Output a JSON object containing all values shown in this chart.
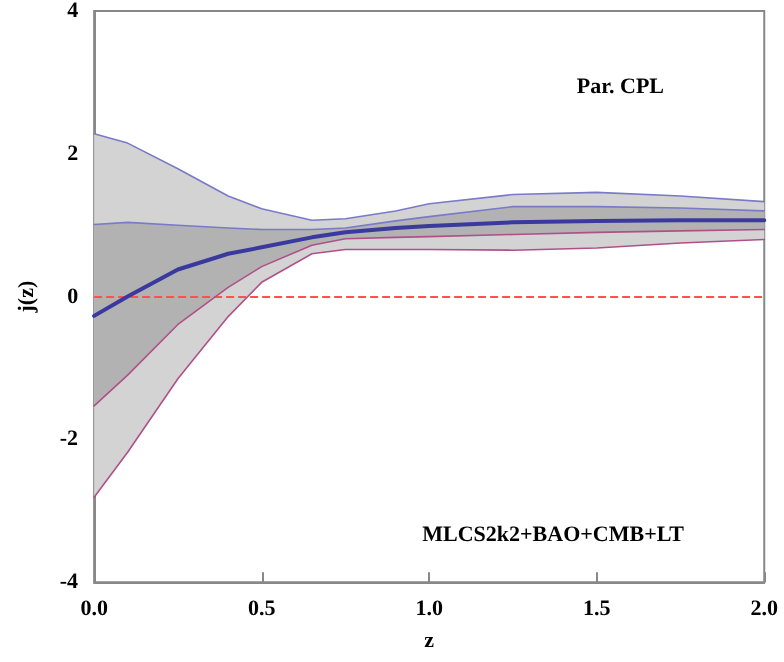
{
  "chart_data": {
    "type": "line",
    "xlabel": "z",
    "ylabel": "j(z)",
    "annotations": [
      "Par. CPL",
      "MLCS2k2+BAO+CMB+LT"
    ],
    "x": [
      0,
      0.1,
      0.25,
      0.4,
      0.5,
      0.65,
      0.75,
      0.9,
      1.0,
      1.25,
      1.5,
      1.75,
      2.0
    ],
    "series": [
      {
        "color": "#d3d3d3",
        "values": [
          null,
          null,
          null,
          null,
          null,
          null,
          null,
          null,
          null,
          null,
          null,
          null,
          null
        ],
        "lower": [
          -2.81,
          -2.18,
          -1.15,
          -0.28,
          0.2,
          0.6,
          0.66,
          0.66,
          0.66,
          0.65,
          0.68,
          0.75,
          0.8
        ],
        "upper": [
          2.28,
          2.15,
          1.79,
          1.41,
          1.23,
          1.07,
          1.09,
          1.2,
          1.3,
          1.43,
          1.46,
          1.41,
          1.33
        ]
      },
      {
        "color": "#b2b2b2",
        "values": [
          null,
          null,
          null,
          null,
          null,
          null,
          null,
          null,
          null,
          null,
          null,
          null,
          null
        ],
        "lower": [
          -1.53,
          -1.1,
          -0.39,
          0.13,
          0.42,
          0.72,
          0.81,
          0.83,
          0.84,
          0.87,
          0.9,
          0.92,
          0.94
        ],
        "upper": [
          1.01,
          1.04,
          1.0,
          0.96,
          0.94,
          0.94,
          0.96,
          1.06,
          1.12,
          1.26,
          1.26,
          1.24,
          1.2
        ]
      },
      {
        "color": "#7a7ac8",
        "values": [
          2.28,
          2.15,
          1.79,
          1.41,
          1.23,
          1.07,
          1.09,
          1.2,
          1.3,
          1.43,
          1.46,
          1.41,
          1.33
        ]
      },
      {
        "color": "#7a7ac8",
        "values": [
          1.01,
          1.04,
          1.0,
          0.96,
          0.94,
          0.94,
          0.96,
          1.06,
          1.12,
          1.26,
          1.26,
          1.24,
          1.2
        ]
      },
      {
        "color": "#b0508a",
        "values": [
          -1.53,
          -1.1,
          -0.39,
          0.13,
          0.42,
          0.72,
          0.81,
          0.83,
          0.84,
          0.87,
          0.9,
          0.92,
          0.94
        ]
      },
      {
        "color": "#b0508a",
        "values": [
          -2.81,
          -2.18,
          -1.15,
          -0.28,
          0.2,
          0.6,
          0.66,
          0.66,
          0.66,
          0.65,
          0.68,
          0.75,
          0.8
        ]
      },
      {
        "color": "#3a3a9e",
        "values": [
          -0.27,
          0.0,
          0.38,
          0.6,
          0.69,
          0.83,
          0.9,
          0.96,
          0.99,
          1.04,
          1.06,
          1.07,
          1.07
        ]
      }
    ],
    "xlim": [
      0,
      2
    ],
    "xticks": [
      {
        "value": 0,
        "label": "0.0"
      },
      {
        "value": 0.5,
        "label": "0.5"
      },
      {
        "value": 1,
        "label": "1.0"
      },
      {
        "value": 1.5,
        "label": "1.5"
      },
      {
        "value": 2,
        "label": "2.0"
      }
    ],
    "ylim": [
      -4,
      4
    ],
    "yticks": [
      -4,
      -2,
      0,
      2,
      4
    ],
    "ref_lines": [
      {
        "axis": "y",
        "value": 0,
        "color": "#ff5050",
        "line_style": "dashed"
      }
    ],
    "grid": false,
    "marker": "none",
    "line_style": "solid"
  }
}
